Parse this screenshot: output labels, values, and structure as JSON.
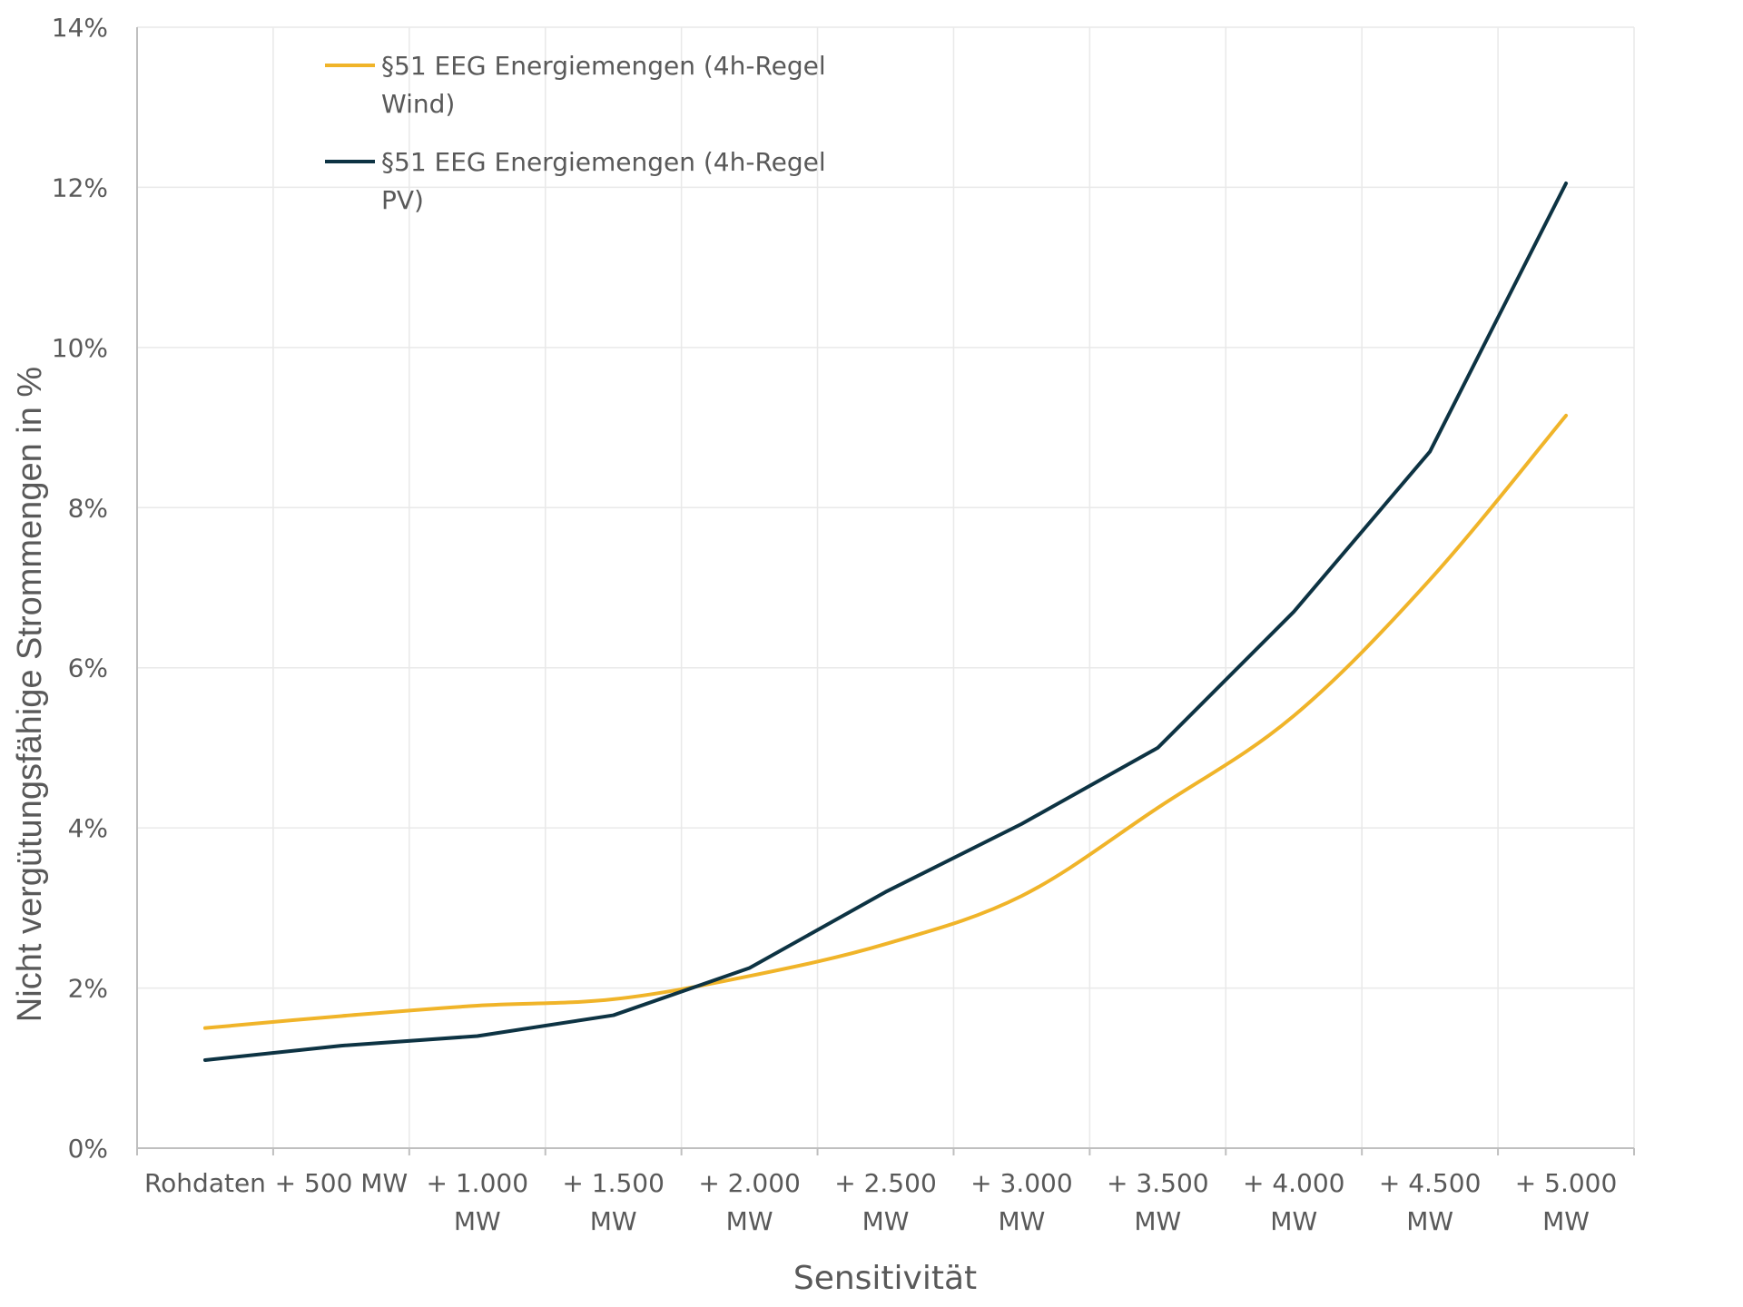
{
  "chart_data": {
    "type": "line",
    "title": "",
    "xlabel": "Sensitivität",
    "ylabel": "Nicht vergütungsfähige Strommengen in %",
    "ylim": [
      0,
      14
    ],
    "yticks": [
      0,
      2,
      4,
      6,
      8,
      10,
      12,
      14
    ],
    "ytick_suffix": "%",
    "grid": true,
    "legend_position": "top-left",
    "categories": [
      [
        "Rohdaten"
      ],
      [
        "+ 500 MW"
      ],
      [
        "+ 1.000",
        "MW"
      ],
      [
        "+ 1.500",
        "MW"
      ],
      [
        "+ 2.000",
        "MW"
      ],
      [
        "+ 2.500",
        "MW"
      ],
      [
        "+ 3.000",
        "MW"
      ],
      [
        "+ 3.500",
        "MW"
      ],
      [
        "+ 4.000",
        "MW"
      ],
      [
        "+ 4.500",
        "MW"
      ],
      [
        "+ 5.000",
        "MW"
      ]
    ],
    "series": [
      {
        "name_lines": [
          "§51 EEG Energiemengen (4h-Regel",
          "Wind)"
        ],
        "color": "#f0b429",
        "smooth": true,
        "values": [
          1.5,
          1.65,
          1.78,
          1.86,
          2.15,
          2.55,
          3.15,
          4.25,
          5.4,
          7.1,
          9.15
        ]
      },
      {
        "name_lines": [
          "§51 EEG Energiemengen (4h-Regel",
          "PV)"
        ],
        "color": "#0d3343",
        "smooth": false,
        "values": [
          1.1,
          1.28,
          1.4,
          1.66,
          2.25,
          3.2,
          4.05,
          5.0,
          6.7,
          8.7,
          12.05
        ]
      }
    ]
  }
}
